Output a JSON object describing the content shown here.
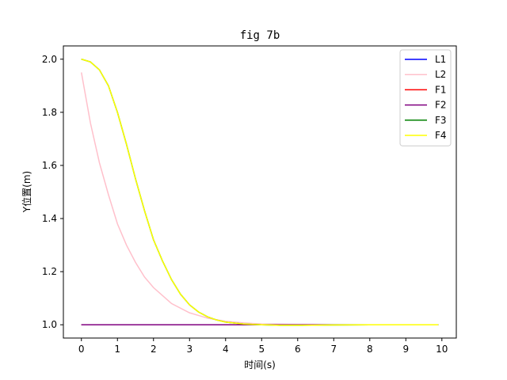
{
  "chart_data": {
    "type": "line",
    "title": "fig 7b",
    "xlabel": "时间(s)",
    "ylabel": "Y位置(m)",
    "xlim": [
      -0.5,
      10.4
    ],
    "ylim": [
      0.95,
      2.05
    ],
    "xticks": [
      0,
      1,
      2,
      3,
      4,
      5,
      6,
      7,
      8,
      9,
      10
    ],
    "yticks": [
      1.0,
      1.2,
      1.4,
      1.6,
      1.8,
      2.0
    ],
    "ytick_labels": [
      "1.0",
      "1.2",
      "1.4",
      "1.6",
      "1.8",
      "2.0"
    ],
    "grid": false,
    "legend_position": "top-right",
    "series": [
      {
        "name": "L1",
        "color": "#0000ff",
        "x": [
          0,
          1,
          2,
          3,
          4,
          5,
          6,
          7,
          8,
          9,
          9.9
        ],
        "y": [
          1.0,
          1.0,
          1.0,
          1.0,
          1.0,
          1.0,
          1.0,
          1.0,
          1.0,
          1.0,
          1.0
        ]
      },
      {
        "name": "L2",
        "color": "#ffc0cb",
        "x": [
          0,
          0.25,
          0.5,
          0.75,
          1,
          1.25,
          1.5,
          1.75,
          2,
          2.5,
          3,
          3.5,
          4,
          4.5,
          5,
          6,
          7,
          8,
          9,
          9.9
        ],
        "y": [
          1.95,
          1.76,
          1.61,
          1.49,
          1.38,
          1.3,
          1.235,
          1.18,
          1.14,
          1.08,
          1.045,
          1.025,
          1.013,
          1.007,
          1.003,
          1.001,
          1.0,
          1.0,
          1.0,
          1.0
        ]
      },
      {
        "name": "F1",
        "color": "#ff0000",
        "x": [
          0,
          1,
          2,
          3,
          4,
          5,
          6,
          7,
          8,
          9,
          9.9
        ],
        "y": [
          1.0,
          1.0,
          1.0,
          1.0,
          1.0,
          1.0,
          1.0,
          1.0,
          1.0,
          1.0,
          1.0
        ]
      },
      {
        "name": "F2",
        "color": "#800080",
        "x": [
          0,
          1,
          2,
          3,
          4,
          5,
          6,
          7,
          8,
          9,
          9.9
        ],
        "y": [
          1.0,
          1.0,
          1.0,
          1.0,
          1.0,
          1.0,
          1.0,
          1.0,
          1.0,
          1.0,
          1.0
        ]
      },
      {
        "name": "F3",
        "color": "#008000",
        "x": [
          0,
          0.25,
          0.5,
          0.75,
          1,
          1.25,
          1.5,
          1.75,
          2,
          2.25,
          2.5,
          2.75,
          3,
          3.25,
          3.5,
          3.75,
          4,
          4.5,
          5,
          5.5,
          6,
          7,
          8,
          9,
          9.9
        ],
        "y": [
          2.0,
          1.99,
          1.96,
          1.9,
          1.8,
          1.68,
          1.55,
          1.43,
          1.32,
          1.24,
          1.17,
          1.115,
          1.075,
          1.048,
          1.03,
          1.018,
          1.01,
          1.003,
          1.0,
          0.998,
          0.998,
          0.999,
          1.0,
          1.0,
          1.0
        ]
      },
      {
        "name": "F4",
        "color": "#ffff00",
        "x": [
          0,
          0.25,
          0.5,
          0.75,
          1,
          1.25,
          1.5,
          1.75,
          2,
          2.25,
          2.5,
          2.75,
          3,
          3.25,
          3.5,
          3.75,
          4,
          4.5,
          5,
          5.5,
          6,
          7,
          8,
          9,
          9.9
        ],
        "y": [
          2.0,
          1.99,
          1.96,
          1.9,
          1.8,
          1.68,
          1.55,
          1.43,
          1.32,
          1.24,
          1.17,
          1.115,
          1.075,
          1.048,
          1.03,
          1.018,
          1.01,
          1.003,
          1.0,
          0.998,
          0.998,
          0.999,
          1.0,
          1.0,
          1.0
        ]
      }
    ]
  }
}
